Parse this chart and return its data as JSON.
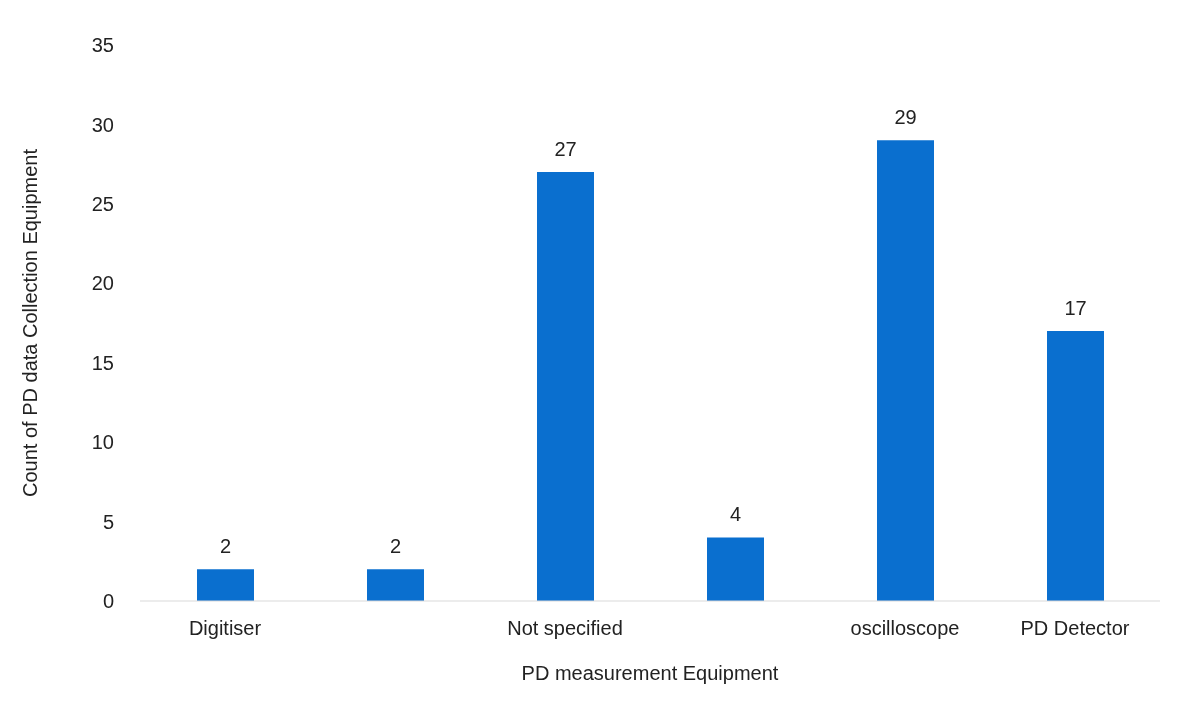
{
  "chart_data": {
    "type": "bar",
    "xlabel": "PD measurement Equipment",
    "ylabel": "Count of PD data Collection Equipment",
    "categories": [
      "Digitiser",
      null,
      "Not specified",
      null,
      "oscilloscope",
      "PD Detector"
    ],
    "values": [
      2,
      2,
      27,
      4,
      29,
      17
    ],
    "color": "#0a6fcf",
    "ylim": [
      0,
      35
    ],
    "yticks": [
      0,
      5,
      10,
      15,
      20,
      25,
      30,
      35
    ],
    "grid": false,
    "data_labels": true
  }
}
